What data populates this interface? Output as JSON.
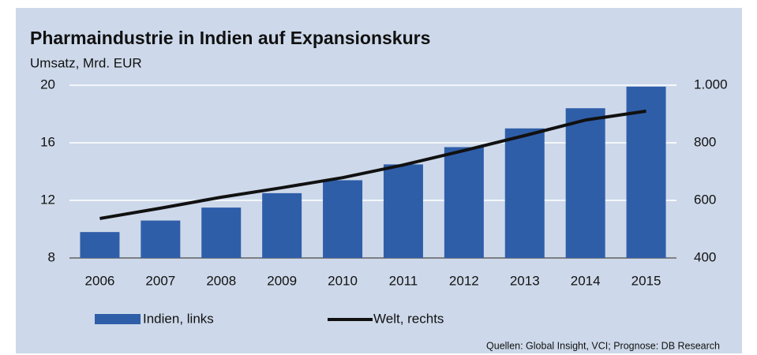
{
  "chart_data": {
    "type": "bar_line",
    "title": "Pharmaindustrie in Indien auf Expansionskurs",
    "subtitle": "Umsatz, Mrd. EUR",
    "source": "Quellen: Global Insight, VCI; Prognose: DB Research",
    "categories": [
      "2006",
      "2007",
      "2008",
      "2009",
      "2010",
      "2011",
      "2012",
      "2013",
      "2014",
      "2015"
    ],
    "series": [
      {
        "name": "Indien, links",
        "type": "bar",
        "color": "#2f5ea9",
        "axis": "y",
        "values": [
          9.8,
          10.6,
          11.5,
          12.5,
          13.4,
          14.5,
          15.7,
          17.0,
          18.4,
          19.9
        ]
      },
      {
        "name": "Welt, rechts",
        "type": "line",
        "color": "#111111",
        "axis": "y2",
        "values": [
          537,
          573,
          611,
          644,
          679,
          723,
          773,
          825,
          879,
          910
        ]
      }
    ],
    "ylim": [
      8,
      20
    ],
    "yticks": [
      8,
      12,
      16,
      20
    ],
    "y2lim": [
      400,
      1000
    ],
    "y2ticks": [
      400,
      600,
      800,
      {
        "value": 1000,
        "label": "1.000"
      }
    ],
    "grid": true
  }
}
